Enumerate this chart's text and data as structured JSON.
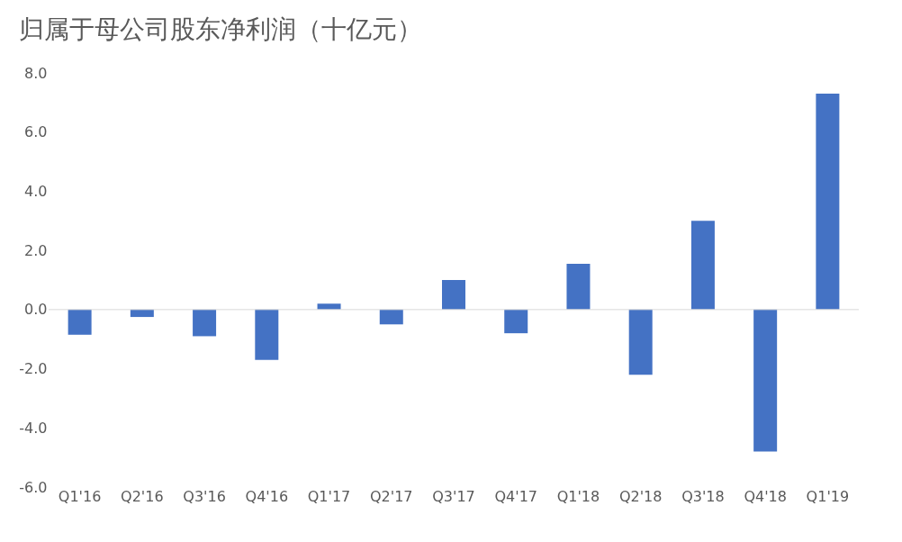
{
  "chart_data": {
    "type": "bar",
    "title": "归属于母公司股东净利润（十亿元）",
    "categories": [
      "Q1'16",
      "Q2'16",
      "Q3'16",
      "Q4'16",
      "Q1'17",
      "Q2'17",
      "Q3'17",
      "Q4'17",
      "Q1'18",
      "Q2'18",
      "Q3'18",
      "Q4'18",
      "Q1'19"
    ],
    "values": [
      -0.85,
      -0.25,
      -0.9,
      -1.7,
      0.2,
      -0.5,
      1.0,
      -0.8,
      1.55,
      -2.2,
      3.0,
      -4.8,
      7.3
    ],
    "color": "#4472c4",
    "ylim": [
      -6,
      8
    ],
    "yticks": [
      {
        "value": -6,
        "label": "-6.0"
      },
      {
        "value": -4,
        "label": "-4.0"
      },
      {
        "value": -2,
        "label": "-2.0"
      },
      {
        "value": 0,
        "label": "0.0"
      },
      {
        "value": 2,
        "label": "2.0"
      },
      {
        "value": 4,
        "label": "4.0"
      },
      {
        "value": 6,
        "label": "6.0"
      },
      {
        "value": 8,
        "label": "8.0"
      }
    ],
    "grid": false,
    "ref_lines": [
      {
        "axis": "y",
        "value": 0,
        "color": "#d9d9d9"
      }
    ]
  }
}
